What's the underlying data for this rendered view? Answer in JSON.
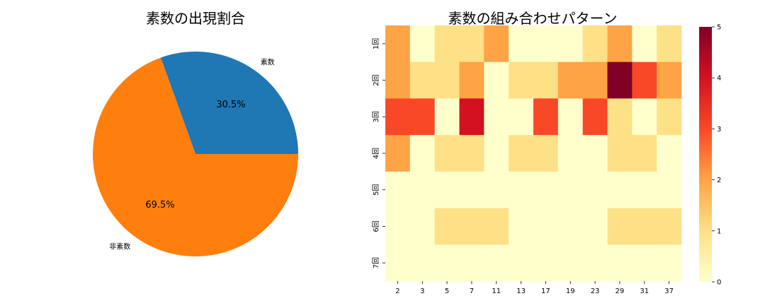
{
  "chart_data": [
    {
      "type": "pie",
      "title": "素数の出現割合",
      "slices": [
        {
          "label": "素数",
          "value": 30.5,
          "pct_label": "30.5%",
          "color": "#1f77b4"
        },
        {
          "label": "非素数",
          "value": 69.5,
          "pct_label": "69.5%",
          "color": "#ff7f0e"
        }
      ]
    },
    {
      "type": "heatmap",
      "title": "素数の組み合わせパターン",
      "x_categories": [
        "2",
        "3",
        "5",
        "7",
        "11",
        "13",
        "17",
        "19",
        "23",
        "29",
        "31",
        "37"
      ],
      "y_categories": [
        "1回",
        "2回",
        "3回",
        "4回",
        "5回",
        "6回",
        "7回"
      ],
      "values": [
        [
          2,
          0,
          1,
          1,
          2,
          0,
          0,
          0,
          1,
          2,
          0,
          1
        ],
        [
          2,
          1,
          1,
          2,
          0,
          1,
          1,
          2,
          2,
          5,
          3,
          2
        ],
        [
          3,
          3,
          0,
          4,
          0,
          0,
          3,
          0,
          3,
          1,
          0,
          1
        ],
        [
          2,
          0,
          1,
          1,
          0,
          1,
          1,
          0,
          0,
          1,
          1,
          0
        ],
        [
          0,
          0,
          0,
          0,
          0,
          0,
          0,
          0,
          0,
          0,
          0,
          0
        ],
        [
          0,
          0,
          1,
          1,
          1,
          0,
          0,
          0,
          0,
          1,
          1,
          1
        ],
        [
          0,
          0,
          0,
          0,
          0,
          0,
          0,
          0,
          0,
          0,
          0,
          0
        ]
      ],
      "colormap": "YlOrRd",
      "colorbar": {
        "min": 0,
        "max": 5,
        "ticks": [
          "0",
          "1",
          "2",
          "3",
          "4",
          "5"
        ]
      },
      "palette": [
        "#ffffcc",
        "#fee087",
        "#fea446",
        "#f94828",
        "#d31121",
        "#800026"
      ]
    }
  ]
}
